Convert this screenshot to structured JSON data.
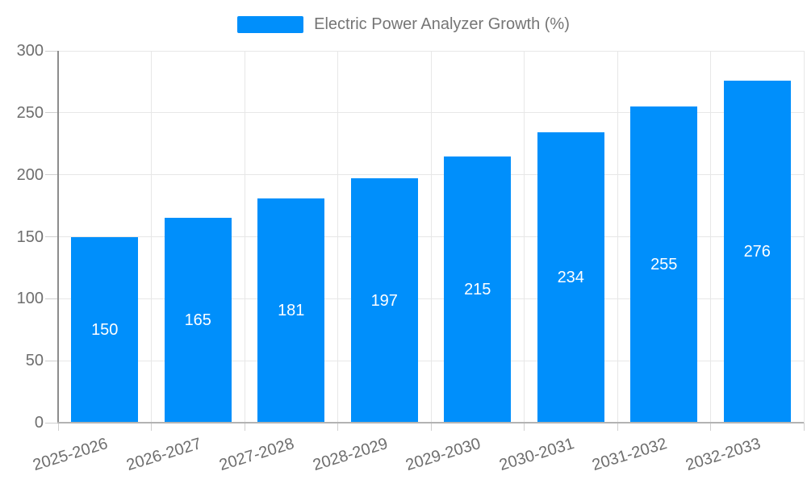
{
  "colors": {
    "bar": "#008FFB",
    "grid": "#e7e7e7",
    "y_axis": "#8c8c8c",
    "x_axis": "#b3b3b3",
    "tick": "#cfcfcf",
    "axis_label": "#6e6e6e",
    "legend_label": "#757575",
    "value_label": "#ffffff",
    "bg": "#ffffff"
  },
  "chart_data": {
    "type": "bar",
    "title": "Electric Power Analyzer Growth (%)",
    "categories": [
      "2025-2026",
      "2026-2027",
      "2027-2028",
      "2028-2029",
      "2029-2030",
      "2030-2031",
      "2031-2032",
      "2032-2033"
    ],
    "values": [
      150,
      165,
      181,
      197,
      215,
      234,
      255,
      276
    ],
    "xlabel": "",
    "ylabel": "",
    "ylim": [
      0,
      300
    ],
    "yticks": [
      0,
      50,
      100,
      150,
      200,
      250,
      300
    ],
    "grid": true,
    "legend_position": "top",
    "bar_value_labels": true,
    "x_label_rotation_deg": -17
  }
}
